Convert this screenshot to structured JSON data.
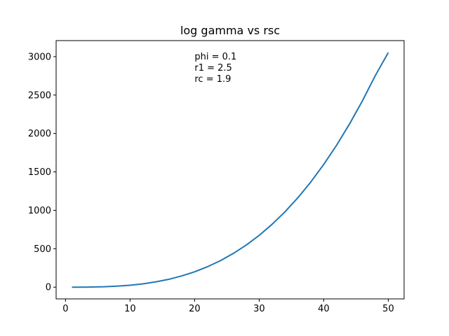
{
  "chart_data": {
    "type": "line",
    "title": "log gamma vs rsc",
    "xlabel": "",
    "ylabel": "",
    "xlim": [
      -1.45,
      52.45
    ],
    "ylim": [
      -152.8,
      3208.8
    ],
    "x_ticks": [
      0,
      10,
      20,
      30,
      40,
      50
    ],
    "y_ticks": [
      0,
      500,
      1000,
      1500,
      2000,
      2500,
      3000
    ],
    "x_tick_labels": [
      "0",
      "10",
      "20",
      "30",
      "40",
      "50"
    ],
    "y_tick_labels": [
      "0",
      "500",
      "1000",
      "1500",
      "2000",
      "2500",
      "3000"
    ],
    "grid": false,
    "annotations": [
      {
        "text": "phi = 0.1",
        "x": 20,
        "y": 3000
      },
      {
        "text": "r1 = 2.5",
        "x": 20,
        "y": 2855
      },
      {
        "text": "rc = 1.9",
        "x": 20,
        "y": 2710
      }
    ],
    "series": [
      {
        "name": "log gamma",
        "color": "#1f77b4",
        "x": [
          1,
          2,
          4,
          6,
          8,
          10,
          12,
          14,
          16,
          18,
          20,
          22,
          24,
          26,
          28,
          30,
          32,
          34,
          36,
          38,
          40,
          42,
          44,
          46,
          48,
          50
        ],
        "values": [
          0.02,
          0.2,
          1.6,
          5.4,
          13,
          25,
          43,
          69,
          102,
          146,
          200,
          266,
          345,
          439,
          548,
          674,
          818,
          981,
          1164,
          1369,
          1597,
          1848,
          2124,
          2426,
          2755,
          3053
        ]
      }
    ]
  }
}
